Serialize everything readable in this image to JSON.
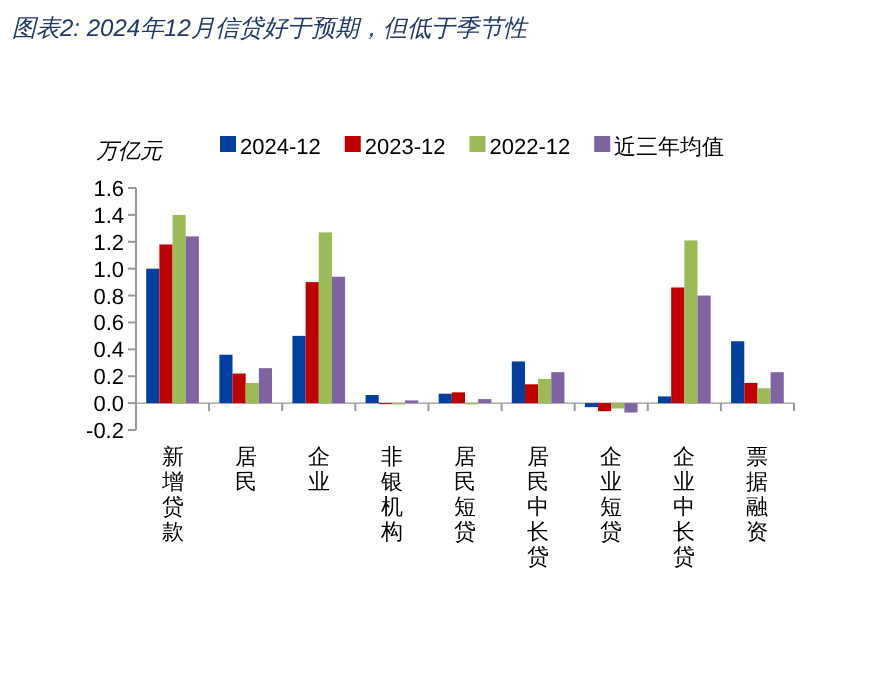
{
  "chart_data": {
    "type": "bar",
    "title": "图表2:  2024年12月信贷好于预期，但低于季节性",
    "ylabel": "万亿元",
    "categories": [
      "新增贷款",
      "居民",
      "企业",
      "非银机构",
      "居民短贷",
      "居民中长贷",
      "企业短贷",
      "企业中长贷",
      "票据融资"
    ],
    "series": [
      {
        "name": "2024-12",
        "color": "#003f9e",
        "values": [
          1.0,
          0.36,
          0.5,
          0.06,
          0.07,
          0.31,
          -0.03,
          0.05,
          0.46
        ]
      },
      {
        "name": "2023-12",
        "color": "#c00000",
        "values": [
          1.18,
          0.22,
          0.9,
          0.0,
          0.08,
          0.14,
          -0.06,
          0.86,
          0.15
        ]
      },
      {
        "name": "2022-12",
        "color": "#9bbb59",
        "values": [
          1.4,
          0.15,
          1.27,
          -0.01,
          -0.01,
          0.18,
          -0.04,
          1.21,
          0.11
        ]
      },
      {
        "name": "近三年均值",
        "color": "#8064a2",
        "values": [
          1.24,
          0.26,
          0.94,
          0.02,
          0.03,
          0.23,
          -0.07,
          0.8,
          0.23
        ]
      }
    ],
    "ylim": [
      -0.2,
      1.6
    ],
    "yticks": [
      -0.2,
      {
        "value": 0,
        "label": "0.0"
      },
      0.2,
      0.4,
      0.6,
      0.8,
      {
        "value": 1,
        "label": "1.0"
      },
      1.2,
      1.4,
      1.6
    ],
    "legend": "top",
    "grid": false
  }
}
